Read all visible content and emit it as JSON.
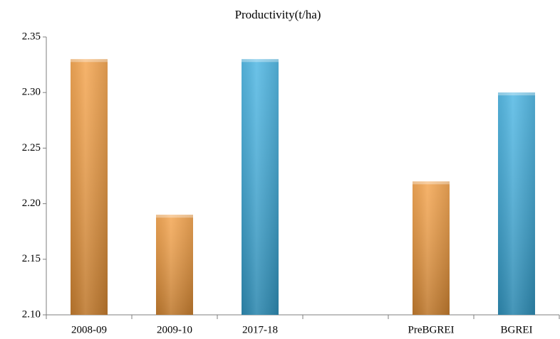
{
  "chart_data": {
    "type": "bar",
    "title": "Productivity(t/ha)",
    "categories": [
      "2008-09",
      "2009-10",
      "2017-18",
      null,
      "PreBGREI",
      "BGREI"
    ],
    "values": [
      2.33,
      2.19,
      2.33,
      null,
      2.22,
      2.3
    ],
    "colors": [
      "#f39a3a",
      "#f39a3a",
      "#3aaee0",
      null,
      "#f39a3a",
      "#3aaee0"
    ],
    "ylim": [
      2.1,
      2.35
    ],
    "yticks": [
      {
        "value": 2.1,
        "label": "2.10"
      },
      2.15,
      {
        "value": 2.2,
        "label": "2.20"
      },
      2.25,
      {
        "value": 2.3,
        "label": "2.30"
      },
      2.35
    ],
    "grid": false
  }
}
